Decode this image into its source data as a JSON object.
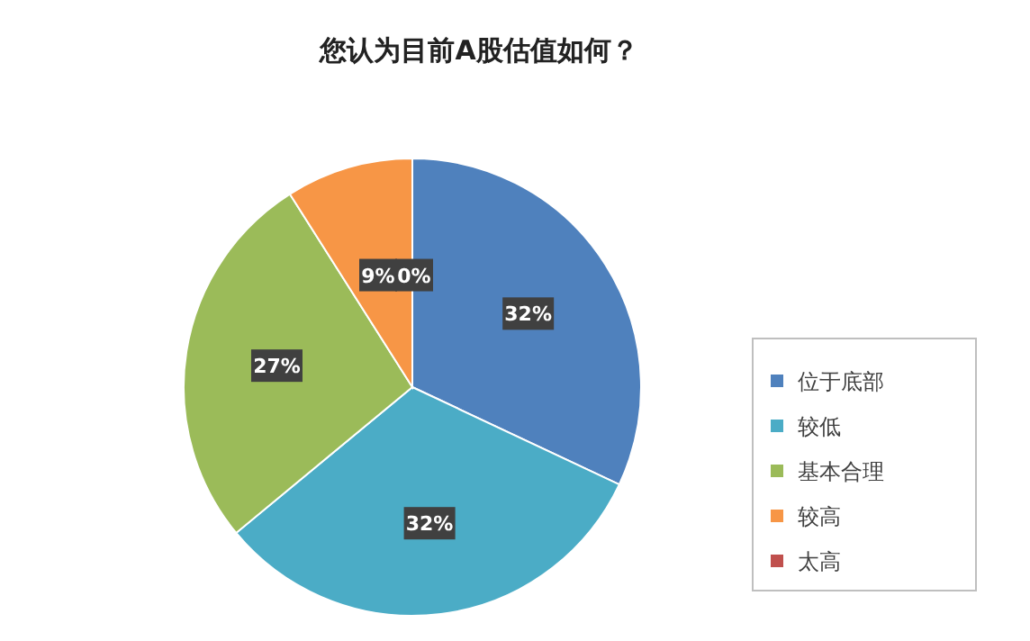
{
  "chart_data": {
    "type": "pie",
    "title": "您认为目前A股估值如何？",
    "categories": [
      "位于底部",
      "较低",
      "基本合理",
      "较高",
      "太高"
    ],
    "values": [
      32,
      32,
      27,
      9,
      0
    ],
    "colors": [
      "#4f81bd",
      "#4bacc6",
      "#9bbb59",
      "#f79646",
      "#c0504d"
    ],
    "value_labels": [
      "32%",
      "32%",
      "27%",
      "9%",
      "0%"
    ],
    "legend": "right"
  }
}
